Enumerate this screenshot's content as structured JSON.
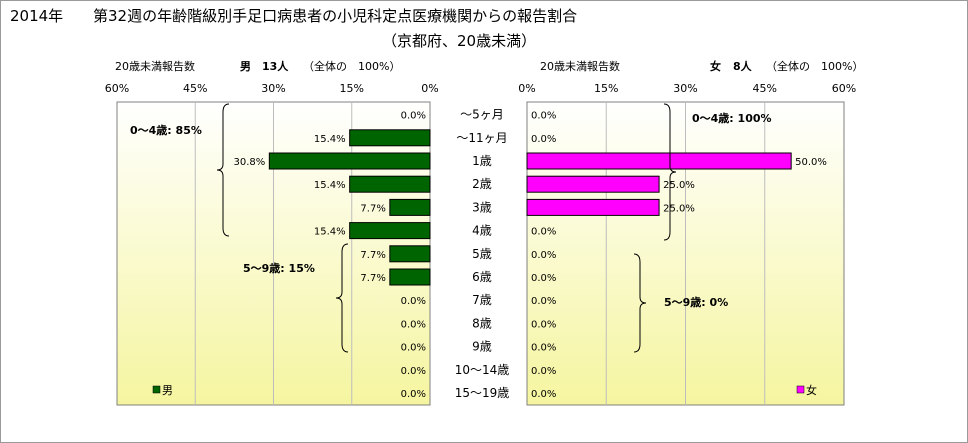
{
  "title": {
    "year": "2014年",
    "main": "第32週の年齢階級別手足口病患者の小児科定点医療機関からの報告割合",
    "sub": "（京都府、20歳未満）"
  },
  "colors": {
    "male": "#006400",
    "female": "#FF00FF",
    "plot_bg_top": "#FFFFFF",
    "plot_bg_bottom": "#F5F5A0"
  },
  "categories": [
    "～5ヶ月",
    "～11ヶ月",
    "1歳",
    "2歳",
    "3歳",
    "4歳",
    "5歳",
    "6歳",
    "7歳",
    "8歳",
    "9歳",
    "10～14歳",
    "15～19歳"
  ],
  "chart_data": [
    {
      "type": "bar",
      "orientation": "horizontal",
      "side": "left",
      "header": {
        "label": "20歳未満報告数",
        "sex": "男",
        "count": "13人",
        "total": "（全体の　100%）"
      },
      "xlim": [
        60,
        0
      ],
      "ticks": [
        "60%",
        "45%",
        "30%",
        "15%",
        "0%"
      ],
      "series": [
        {
          "name": "男",
          "values": [
            0.0,
            15.4,
            30.8,
            15.4,
            7.7,
            15.4,
            7.7,
            7.7,
            0.0,
            0.0,
            0.0,
            0.0,
            0.0
          ]
        }
      ],
      "value_labels": [
        "0.0%",
        "15.4%",
        "30.8%",
        "15.4%",
        "7.7%",
        "15.4%",
        "7.7%",
        "7.7%",
        "0.0%",
        "0.0%",
        "0.0%",
        "0.0%",
        "0.0%"
      ],
      "annotations": [
        "0～4歳: 85%",
        "5～9歳: 15%"
      ],
      "legend": "男",
      "legend_position": "bottom-left"
    },
    {
      "type": "bar",
      "orientation": "horizontal",
      "side": "right",
      "header": {
        "label": "20歳未満報告数",
        "sex": "女",
        "count": "8人",
        "total": "（全体の　100%）"
      },
      "xlim": [
        0,
        60
      ],
      "ticks": [
        "0%",
        "15%",
        "30%",
        "45%",
        "60%"
      ],
      "series": [
        {
          "name": "女",
          "values": [
            0.0,
            0.0,
            50.0,
            25.0,
            25.0,
            0.0,
            0.0,
            0.0,
            0.0,
            0.0,
            0.0,
            0.0,
            0.0
          ]
        }
      ],
      "value_labels": [
        "0.0%",
        "0.0%",
        "50.0%",
        "25.0%",
        "25.0%",
        "0.0%",
        "0.0%",
        "0.0%",
        "0.0%",
        "0.0%",
        "0.0%",
        "0.0%",
        "0.0%"
      ],
      "annotations": [
        "0～4歳: 100%",
        "5～9歳: 0%"
      ],
      "legend": "女",
      "legend_position": "bottom-right"
    }
  ]
}
